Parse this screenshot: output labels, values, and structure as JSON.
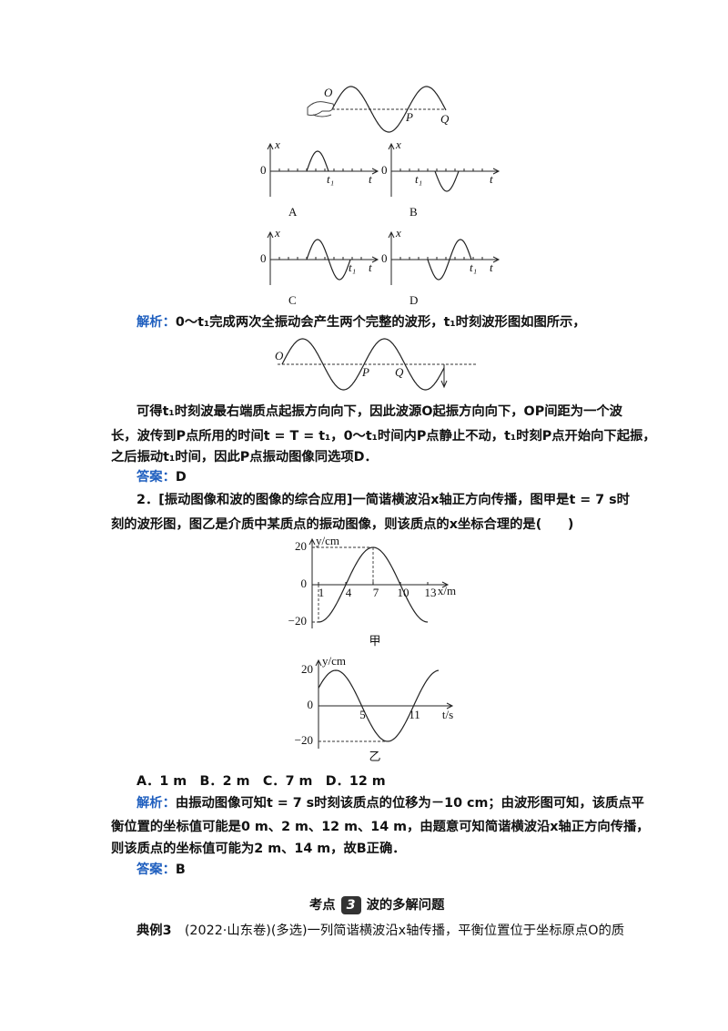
{
  "figure_source_wave": {
    "labels": [
      "O",
      "P",
      "Q"
    ]
  },
  "options_figure": [
    {
      "axis_y": "x",
      "axis_x": "t",
      "origin": "0",
      "marker": "t₁",
      "caption": "A"
    },
    {
      "axis_y": "x",
      "axis_x": "t",
      "origin": "0",
      "marker": "t₁",
      "caption": "B"
    },
    {
      "axis_y": "x",
      "axis_x": "t",
      "origin": "0",
      "marker": "t₁",
      "caption": "C"
    },
    {
      "axis_y": "x",
      "axis_x": "t",
      "origin": "0",
      "marker": "t₁",
      "caption": "D"
    }
  ],
  "solution1": {
    "label": "解析：",
    "text": "0～t₁完成两次全振动会产生两个完整的波形，t₁时刻波形图如图所示，"
  },
  "figure_t1_wave": {
    "labels": [
      "O",
      "P",
      "Q"
    ]
  },
  "paragraph1": {
    "lines": [
      "可得t₁时刻波最右端质点起振方向向下，因此波源O起振方向向下，OP间距为一个波",
      "长，波传到P点所用的时间t = T = t₁，0～t₁时间内P点静止不动，t₁时刻P点开始向下起振，",
      "之后振动t₁时间，因此P点振动图像同选项D．"
    ]
  },
  "answer1": {
    "label": "答案：",
    "value": "D"
  },
  "question2": {
    "lines": [
      "2．[振动图像和波的图像的综合应用]一简谐横波沿x轴正方向传播，图甲是t = 7 s时",
      "刻的波形图，图乙是介质中某质点的振动图像，则该质点的x坐标合理的是(　　)"
    ]
  },
  "figure_jia": {
    "y_label": "y/cm",
    "y_ticks": [
      "20",
      "0",
      "−20"
    ],
    "x_ticks": [
      "1",
      "4",
      "7",
      "10",
      "13"
    ],
    "x_label": "x/m",
    "caption": "甲"
  },
  "figure_yi": {
    "y_label": "y/cm",
    "y_ticks": [
      "20",
      "0",
      "−20"
    ],
    "t_ticks": [
      "5",
      "11"
    ],
    "t_label": "t/s",
    "caption": "乙"
  },
  "choices": [
    "A．1 m",
    "B．2 m",
    "C．7 m",
    "D．12 m"
  ],
  "solution2": {
    "label": "解析：",
    "lines": [
      "由振动图像可知t = 7 s时刻该质点的位移为－10 cm；由波形图可知，该质点平",
      "衡位置的坐标值可能是0 m、2 m、12 m、14 m，由题意可知简谐横波沿x轴正方向传播，",
      "则该质点的坐标值可能为2 m、14 m，故B正确．"
    ]
  },
  "answer2": {
    "label": "答案：",
    "value": "B"
  },
  "section": {
    "prefix": "考点",
    "number": "3",
    "title": "波的多解问题"
  },
  "example": {
    "label": "典例3",
    "text": "(2022·山东卷)(多选)一列简谐横波沿x轴传播，平衡位置位于坐标原点O的质"
  }
}
